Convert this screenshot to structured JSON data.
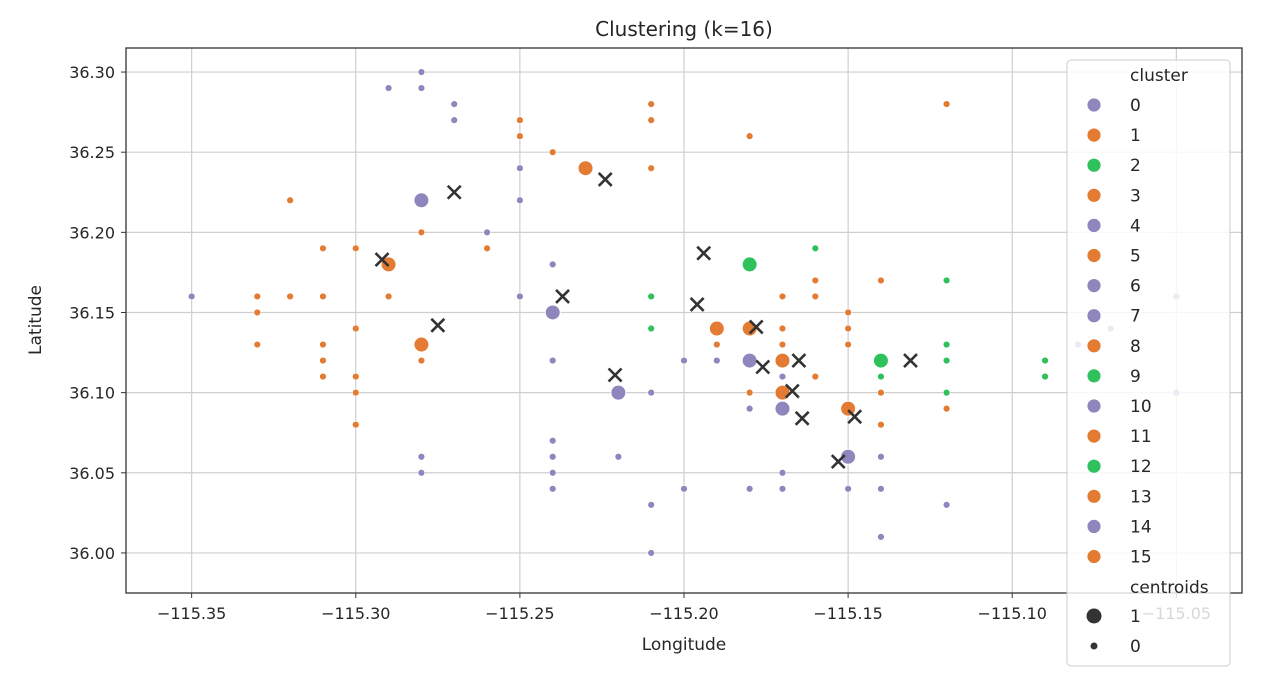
{
  "chart_data": {
    "type": "scatter",
    "title": "Clustering (k=16)",
    "xlabel": "Longitude",
    "ylabel": "Latitude",
    "xlim": [
      -115.37,
      -115.03
    ],
    "ylim": [
      35.975,
      36.315
    ],
    "xticks": [
      "−115.35",
      "−115.30",
      "−115.25",
      "−115.20",
      "−115.15",
      "−115.10",
      "−115.05"
    ],
    "xtick_values": [
      -115.35,
      -115.3,
      -115.25,
      -115.2,
      -115.15,
      -115.1,
      -115.05
    ],
    "yticks": [
      "36.00",
      "36.05",
      "36.10",
      "36.15",
      "36.20",
      "36.25",
      "36.30"
    ],
    "ytick_values": [
      36.0,
      36.05,
      36.1,
      36.15,
      36.2,
      36.25,
      36.3
    ],
    "grid": true,
    "legend": {
      "placement": "right",
      "cluster_title": "cluster",
      "centroids_title": "centroids",
      "clusters": [
        {
          "label": "0",
          "color": "#8e86bc"
        },
        {
          "label": "1",
          "color": "#e37b33"
        },
        {
          "label": "2",
          "color": "#2ec15c"
        },
        {
          "label": "3",
          "color": "#e37b33"
        },
        {
          "label": "4",
          "color": "#8e86bc"
        },
        {
          "label": "5",
          "color": "#e37b33"
        },
        {
          "label": "6",
          "color": "#8e86bc"
        },
        {
          "label": "7",
          "color": "#8e86bc"
        },
        {
          "label": "8",
          "color": "#e37b33"
        },
        {
          "label": "9",
          "color": "#2ec15c"
        },
        {
          "label": "10",
          "color": "#8e86bc"
        },
        {
          "label": "11",
          "color": "#e37b33"
        },
        {
          "label": "12",
          "color": "#2ec15c"
        },
        {
          "label": "13",
          "color": "#e37b33"
        },
        {
          "label": "14",
          "color": "#8e86bc"
        },
        {
          "label": "15",
          "color": "#e37b33"
        }
      ],
      "sizes": [
        {
          "label": "1",
          "size": "big"
        },
        {
          "label": "0",
          "size": "small"
        }
      ]
    },
    "colors": {
      "purple": "#8e86bc",
      "orange": "#e37b33",
      "green": "#2ec15c",
      "centroid_x": "#333333"
    },
    "points": [
      [
        -115.35,
        36.16,
        "p"
      ],
      [
        -115.33,
        36.16,
        "o"
      ],
      [
        -115.33,
        36.15,
        "o"
      ],
      [
        -115.33,
        36.13,
        "o"
      ],
      [
        -115.32,
        36.22,
        "o"
      ],
      [
        -115.32,
        36.16,
        "o"
      ],
      [
        -115.31,
        36.19,
        "o"
      ],
      [
        -115.31,
        36.16,
        "o"
      ],
      [
        -115.31,
        36.13,
        "o"
      ],
      [
        -115.31,
        36.12,
        "o"
      ],
      [
        -115.31,
        36.11,
        "o"
      ],
      [
        -115.3,
        36.19,
        "o"
      ],
      [
        -115.3,
        36.14,
        "o"
      ],
      [
        -115.3,
        36.11,
        "o"
      ],
      [
        -115.3,
        36.1,
        "o"
      ],
      [
        -115.3,
        36.08,
        "o"
      ],
      [
        -115.29,
        36.29,
        "p"
      ],
      [
        -115.29,
        36.16,
        "o"
      ],
      [
        -115.28,
        36.3,
        "p"
      ],
      [
        -115.28,
        36.29,
        "p"
      ],
      [
        -115.28,
        36.2,
        "o"
      ],
      [
        -115.28,
        36.12,
        "o"
      ],
      [
        -115.28,
        36.06,
        "p"
      ],
      [
        -115.28,
        36.05,
        "p"
      ],
      [
        -115.27,
        36.28,
        "p"
      ],
      [
        -115.27,
        36.27,
        "p"
      ],
      [
        -115.26,
        36.2,
        "p"
      ],
      [
        -115.26,
        36.19,
        "o"
      ],
      [
        -115.25,
        36.27,
        "o"
      ],
      [
        -115.25,
        36.26,
        "o"
      ],
      [
        -115.25,
        36.24,
        "p"
      ],
      [
        -115.25,
        36.22,
        "p"
      ],
      [
        -115.25,
        36.16,
        "p"
      ],
      [
        -115.24,
        36.25,
        "o"
      ],
      [
        -115.24,
        36.18,
        "p"
      ],
      [
        -115.24,
        36.12,
        "p"
      ],
      [
        -115.24,
        36.07,
        "p"
      ],
      [
        -115.24,
        36.06,
        "p"
      ],
      [
        -115.24,
        36.05,
        "p"
      ],
      [
        -115.24,
        36.04,
        "p"
      ],
      [
        -115.22,
        36.06,
        "p"
      ],
      [
        -115.21,
        36.28,
        "o"
      ],
      [
        -115.21,
        36.27,
        "o"
      ],
      [
        -115.21,
        36.24,
        "o"
      ],
      [
        -115.21,
        36.16,
        "g"
      ],
      [
        -115.21,
        36.14,
        "g"
      ],
      [
        -115.21,
        36.1,
        "p"
      ],
      [
        -115.21,
        36.03,
        "p"
      ],
      [
        -115.21,
        36.0,
        "p"
      ],
      [
        -115.2,
        36.12,
        "p"
      ],
      [
        -115.2,
        36.04,
        "p"
      ],
      [
        -115.19,
        36.13,
        "o"
      ],
      [
        -115.19,
        36.12,
        "p"
      ],
      [
        -115.18,
        36.26,
        "o"
      ],
      [
        -115.18,
        36.14,
        "o"
      ],
      [
        -115.18,
        36.1,
        "o"
      ],
      [
        -115.18,
        36.09,
        "p"
      ],
      [
        -115.18,
        36.04,
        "p"
      ],
      [
        -115.17,
        36.16,
        "o"
      ],
      [
        -115.17,
        36.14,
        "o"
      ],
      [
        -115.17,
        36.13,
        "o"
      ],
      [
        -115.17,
        36.11,
        "p"
      ],
      [
        -115.17,
        36.05,
        "p"
      ],
      [
        -115.17,
        36.04,
        "p"
      ],
      [
        -115.16,
        36.19,
        "g"
      ],
      [
        -115.16,
        36.17,
        "o"
      ],
      [
        -115.16,
        36.16,
        "o"
      ],
      [
        -115.16,
        36.11,
        "o"
      ],
      [
        -115.15,
        36.15,
        "o"
      ],
      [
        -115.15,
        36.14,
        "o"
      ],
      [
        -115.15,
        36.13,
        "o"
      ],
      [
        -115.15,
        36.04,
        "p"
      ],
      [
        -115.14,
        36.17,
        "o"
      ],
      [
        -115.14,
        36.11,
        "g"
      ],
      [
        -115.14,
        36.1,
        "o"
      ],
      [
        -115.14,
        36.08,
        "o"
      ],
      [
        -115.14,
        36.06,
        "p"
      ],
      [
        -115.14,
        36.04,
        "p"
      ],
      [
        -115.14,
        36.01,
        "p"
      ],
      [
        -115.12,
        36.28,
        "o"
      ],
      [
        -115.12,
        36.17,
        "g"
      ],
      [
        -115.12,
        36.13,
        "g"
      ],
      [
        -115.12,
        36.12,
        "g"
      ],
      [
        -115.12,
        36.1,
        "g"
      ],
      [
        -115.12,
        36.09,
        "o"
      ],
      [
        -115.12,
        36.03,
        "p"
      ],
      [
        -115.09,
        36.12,
        "g"
      ],
      [
        -115.09,
        36.11,
        "g"
      ],
      [
        -115.08,
        36.13,
        "p"
      ],
      [
        -115.07,
        36.14,
        "p"
      ],
      [
        -115.05,
        36.16,
        "p"
      ],
      [
        -115.05,
        36.1,
        "p"
      ]
    ],
    "big_points": [
      [
        -115.28,
        36.22,
        "p"
      ],
      [
        -115.23,
        36.24,
        "o"
      ],
      [
        -115.29,
        36.18,
        "o"
      ],
      [
        -115.24,
        36.15,
        "p"
      ],
      [
        -115.28,
        36.13,
        "o"
      ],
      [
        -115.22,
        36.1,
        "p"
      ],
      [
        -115.18,
        36.18,
        "g"
      ],
      [
        -115.19,
        36.14,
        "o"
      ],
      [
        -115.18,
        36.14,
        "o"
      ],
      [
        -115.18,
        36.12,
        "p"
      ],
      [
        -115.17,
        36.12,
        "o"
      ],
      [
        -115.17,
        36.1,
        "o"
      ],
      [
        -115.17,
        36.09,
        "p"
      ],
      [
        -115.15,
        36.09,
        "o"
      ],
      [
        -115.15,
        36.06,
        "p"
      ],
      [
        -115.14,
        36.12,
        "g"
      ]
    ],
    "centroids": [
      [
        -115.292,
        36.183
      ],
      [
        -115.27,
        36.225
      ],
      [
        -115.275,
        36.142
      ],
      [
        -115.237,
        36.16
      ],
      [
        -115.224,
        36.233
      ],
      [
        -115.221,
        36.111
      ],
      [
        -115.194,
        36.187
      ],
      [
        -115.196,
        36.155
      ],
      [
        -115.178,
        36.141
      ],
      [
        -115.176,
        36.116
      ],
      [
        -115.165,
        36.12
      ],
      [
        -115.167,
        36.101
      ],
      [
        -115.164,
        36.084
      ],
      [
        -115.153,
        36.057
      ],
      [
        -115.148,
        36.085
      ],
      [
        -115.131,
        36.12
      ]
    ]
  }
}
